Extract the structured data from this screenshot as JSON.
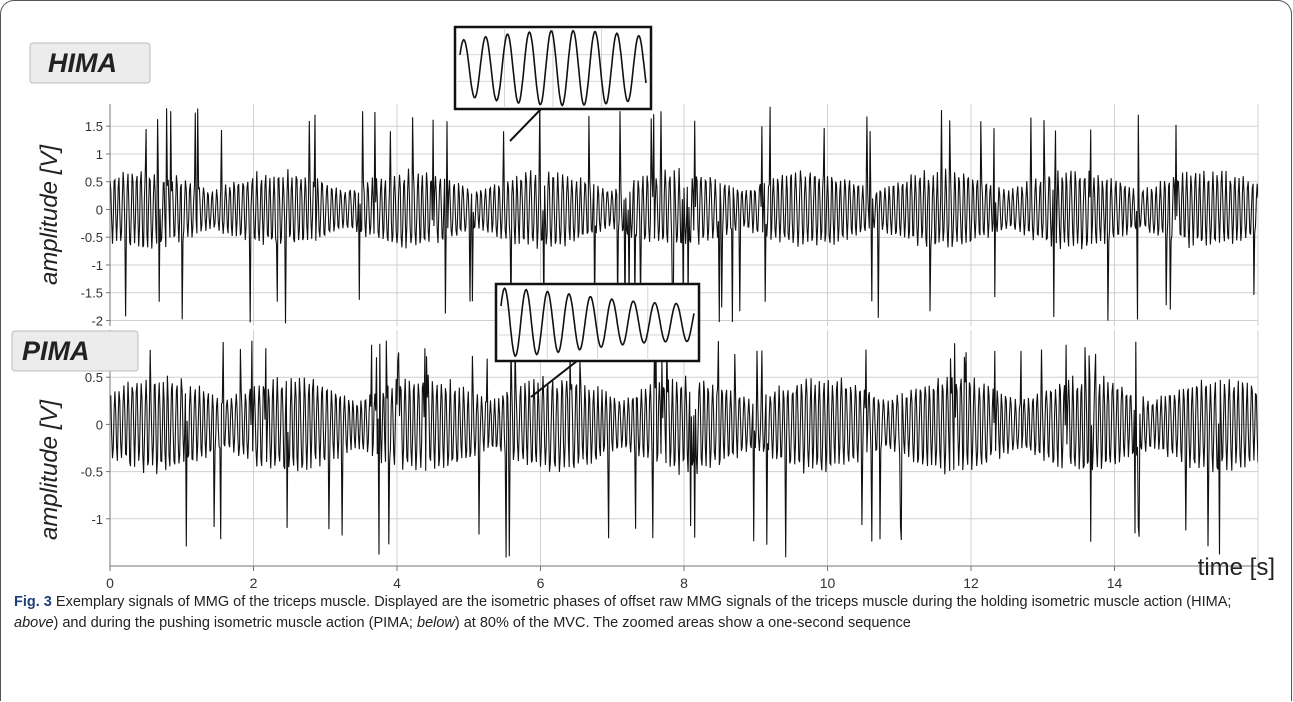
{
  "chart_data": [
    {
      "type": "line",
      "label": "HIMA",
      "ylabel": "amplitude [V]",
      "yticks": [
        "1.5",
        "1",
        "0.5",
        "0",
        "-0.5",
        "-1",
        "-1.5",
        "-2"
      ],
      "ylim": [
        -2.1,
        1.9
      ],
      "xlim": [
        0,
        16
      ],
      "grid": true,
      "series": [
        {
          "values": "dense oscillating MMG signal, roughly ±0.8 V with peaks up to 1.9 V and down to -2.1 V"
        }
      ],
      "zoom_inset": {
        "shows": "one-second sequence",
        "approx_x": 5.7
      }
    },
    {
      "type": "line",
      "label": "PIMA",
      "ylabel": "amplitude [V]",
      "yticks": [
        "0.5",
        "0",
        "-0.5",
        "-1"
      ],
      "ylim": [
        -1.5,
        1.0
      ],
      "xlim": [
        0,
        16
      ],
      "xticks": [
        "0",
        "2",
        "4",
        "6",
        "8",
        "10",
        "12",
        "14"
      ],
      "xlabel": "time [s]",
      "grid": true,
      "series": [
        {
          "values": "dense oscillating MMG signal, roughly ±0.6 V with peaks up to 0.9 V and down to -1.45 V"
        }
      ],
      "zoom_inset": {
        "shows": "one-second sequence",
        "approx_x": 5.9
      }
    }
  ],
  "caption": {
    "label": "Fig. 3",
    "part1": " Exemplary signals of MMG of the triceps muscle. Displayed are the isometric phases of offset raw MMG signals of the triceps muscle during the holding isometric muscle action (HIMA; ",
    "above": "above",
    "part2": ") and during the pushing isometric muscle action (PIMA; ",
    "below": "below",
    "part3": ") at 80% of the MVC. The zoomed areas show a one-second sequence"
  },
  "colors": {
    "signal": "#111111",
    "grid": "#cfcfcf",
    "caption_label": "#1f3f7a"
  }
}
